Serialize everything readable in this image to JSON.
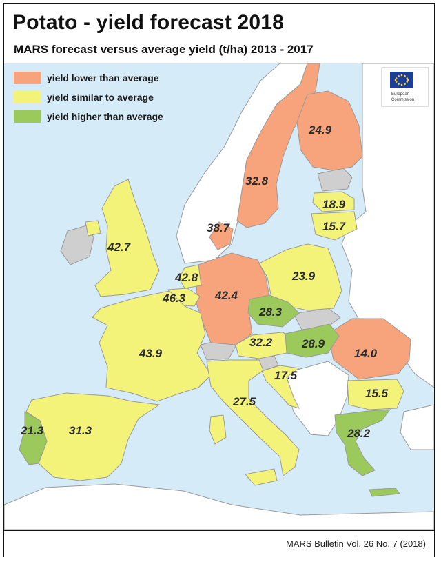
{
  "title": "Potato - yield forecast 2018",
  "subtitle": "MARS forecast versus average yield (t/ha) 2013 - 2017",
  "source": "MARS Bulletin Vol. 26 No. 7 (2018)",
  "logo": {
    "icon": "eu-flag-icon",
    "org_line1": "European",
    "org_line2": "Commission"
  },
  "colors": {
    "sea": "#d5ebf7",
    "lower": "#f7a37c",
    "similar": "#f3f37a",
    "higher": "#9bc95c",
    "no_data": "#cfcfcf",
    "outside": "#ffffff"
  },
  "legend": {
    "lower": "yield lower than average",
    "similar": "yield similar to average",
    "higher": "yield higher than average"
  },
  "values": {
    "finland": "24.9",
    "sweden": "32.8",
    "denmark": "38.7",
    "latvia": "18.9",
    "lithuania": "15.7",
    "uk": "42.7",
    "netherlands": "42.8",
    "belgium": "46.3",
    "germany": "42.4",
    "poland": "23.9",
    "czechia": "28.3",
    "france": "43.9",
    "austria": "32.2",
    "hungary": "28.9",
    "romania": "14.0",
    "croatia": "17.5",
    "italy": "27.5",
    "bulgaria": "15.5",
    "portugal": "21.3",
    "spain": "31.3",
    "greece": "28.2"
  }
}
